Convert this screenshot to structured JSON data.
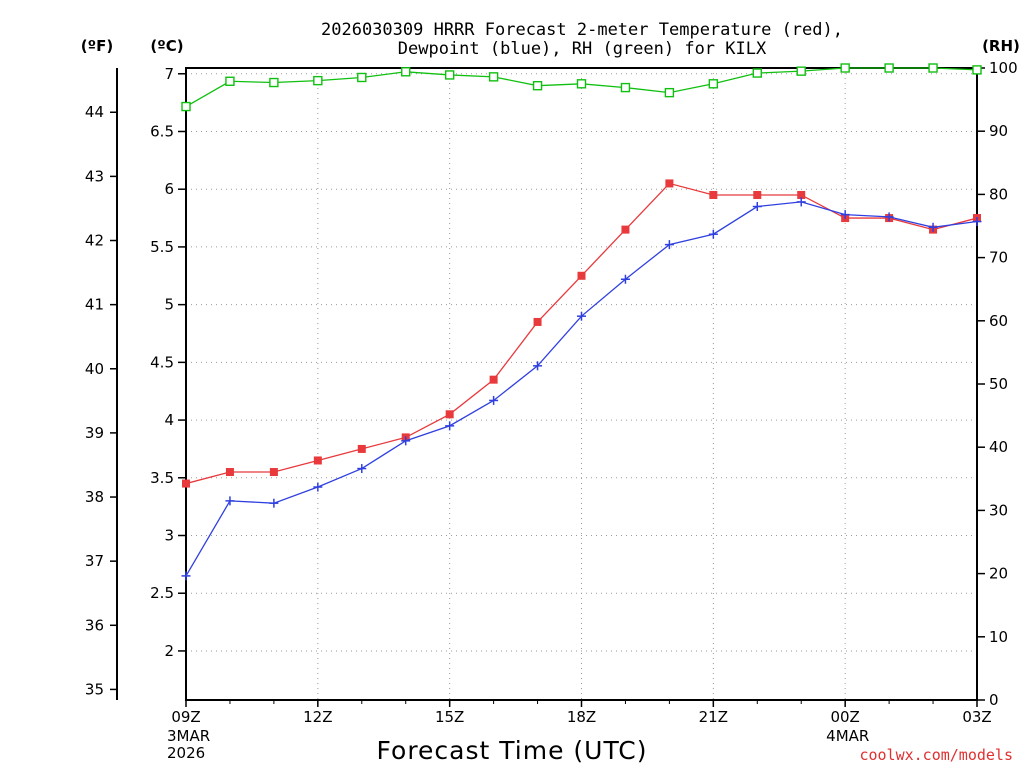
{
  "chart_data": {
    "type": "line",
    "title_line1": "2026030309 HRRR Forecast 2-meter Temperature (red),",
    "title_line2": "Dewpoint (blue), RH (green) for KILX",
    "xlabel": "Forecast Time (UTC)",
    "credit": "coolwx.com/models",
    "units": {
      "fahrenheit": "(ºF)",
      "celsius": "(ºC)",
      "rh": "(RH)"
    },
    "x": [
      0,
      1,
      2,
      3,
      4,
      5,
      6,
      7,
      8,
      9,
      10,
      11,
      12,
      13,
      14,
      15,
      16,
      17,
      18
    ],
    "xlim": [
      0,
      18
    ],
    "x_ticks": [
      {
        "x": 0,
        "label": "09Z"
      },
      {
        "x": 3,
        "label": "12Z"
      },
      {
        "x": 6,
        "label": "15Z"
      },
      {
        "x": 9,
        "label": "18Z"
      },
      {
        "x": 12,
        "label": "21Z"
      },
      {
        "x": 15,
        "label": "00Z"
      },
      {
        "x": 18,
        "label": "03Z"
      }
    ],
    "x_date_labels": [
      {
        "x": 0,
        "lines": [
          "3MAR",
          "2026"
        ]
      },
      {
        "x": 15,
        "lines": [
          "4MAR"
        ]
      }
    ],
    "celsius_ylim": [
      1.575,
      7.05
    ],
    "celsius_ticks": [
      "2",
      "2.5",
      "3",
      "3.5",
      "4",
      "4.5",
      "5",
      "5.5",
      "6",
      "6.5",
      "7"
    ],
    "fahrenheit_ticks": [
      "35",
      "36",
      "37",
      "38",
      "39",
      "40",
      "41",
      "42",
      "43",
      "44"
    ],
    "rh_ylim": [
      0,
      100
    ],
    "rh_ticks": [
      "0",
      "10",
      "20",
      "30",
      "40",
      "50",
      "60",
      "70",
      "80",
      "90",
      "100"
    ],
    "series": [
      {
        "name": "Temperature",
        "axis": "celsius",
        "color": "#e8393c",
        "marker": "filled-square",
        "values": [
          3.45,
          3.55,
          3.55,
          3.65,
          3.75,
          3.85,
          4.05,
          4.35,
          4.85,
          5.25,
          5.65,
          6.05,
          5.95,
          5.95,
          5.95,
          5.75,
          5.75,
          5.65,
          5.75
        ]
      },
      {
        "name": "Dewpoint",
        "axis": "celsius",
        "color": "#3040e0",
        "marker": "plus",
        "values": [
          2.65,
          3.3,
          3.28,
          3.42,
          3.58,
          3.82,
          3.95,
          4.17,
          4.47,
          4.9,
          5.22,
          5.52,
          5.61,
          5.85,
          5.89,
          5.78,
          5.76,
          5.67,
          5.72
        ]
      },
      {
        "name": "RH",
        "axis": "rh",
        "color": "#10c010",
        "marker": "open-square",
        "values": [
          93.9,
          97.9,
          97.7,
          98.0,
          98.5,
          99.4,
          98.9,
          98.6,
          97.2,
          97.5,
          96.9,
          96.1,
          97.5,
          99.2,
          99.5,
          100,
          100,
          100,
          99.7
        ]
      }
    ]
  }
}
